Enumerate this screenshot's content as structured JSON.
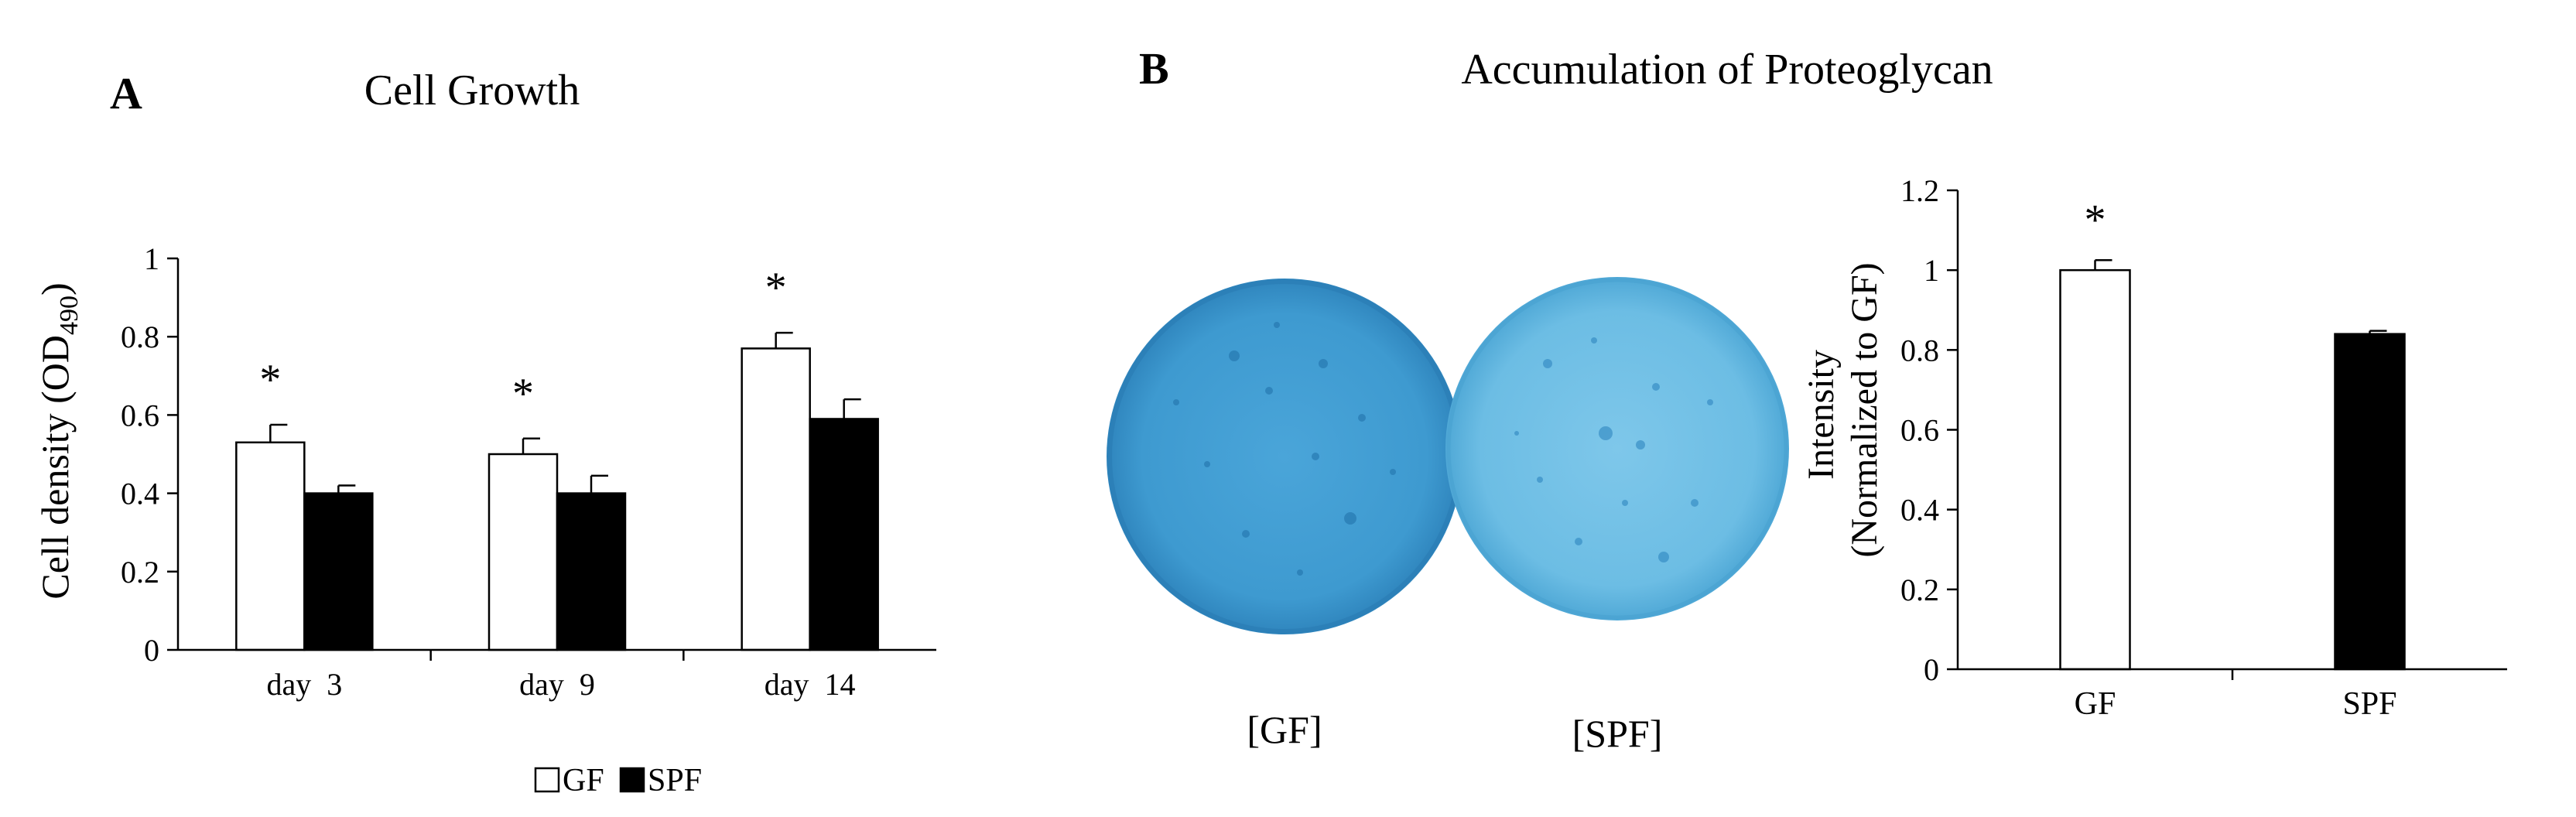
{
  "panels": {
    "a": {
      "letter": "A",
      "title": "Cell Growth"
    },
    "b": {
      "letter": "B",
      "title": "Accumulation of Proteoglycan",
      "plate_labels": [
        "[GF]",
        "[SPF]"
      ]
    }
  },
  "colors": {
    "GF": "#ffffff",
    "SPF": "#000000",
    "stain_gf": "#3f9bd0",
    "stain_spf": "#6cbde3"
  },
  "chart_data": [
    {
      "type": "bar",
      "title": "Cell Growth",
      "xlabel": "",
      "ylabel": "Cell density (OD490)",
      "ylabel_main": "Cell density (OD",
      "ylabel_sub": "490",
      "ylabel_tail": ")",
      "categories": [
        "day  3",
        "day  9",
        "day  14"
      ],
      "series": [
        {
          "name": "GF",
          "values": [
            0.53,
            0.5,
            0.77
          ],
          "errors": [
            0.045,
            0.04,
            0.04
          ]
        },
        {
          "name": "SPF",
          "values": [
            0.4,
            0.4,
            0.59
          ],
          "errors": [
            0.02,
            0.045,
            0.05
          ]
        }
      ],
      "significance": [
        "*",
        "*",
        "*"
      ],
      "ylim": [
        0,
        1
      ],
      "yticks": [
        "0",
        "0.2",
        "0.4",
        "0.6",
        "0.8",
        "1"
      ],
      "grid": false,
      "legend": "bottom-center"
    },
    {
      "type": "bar",
      "title": "",
      "xlabel": "",
      "ylabel": "Intensity (Normalized to GF)",
      "ylabel_line1": "Intensity",
      "ylabel_line2": "(Normalized to GF)",
      "categories": [
        "GF",
        "SPF"
      ],
      "values": [
        1.0,
        0.84
      ],
      "errors": [
        0.025,
        0.008
      ],
      "significance": [
        "*",
        ""
      ],
      "ylim": [
        0,
        1.2
      ],
      "yticks": [
        "0",
        "0.2",
        "0.4",
        "0.6",
        "0.8",
        "1",
        "1.2"
      ],
      "grid": false,
      "legend": "none"
    }
  ]
}
